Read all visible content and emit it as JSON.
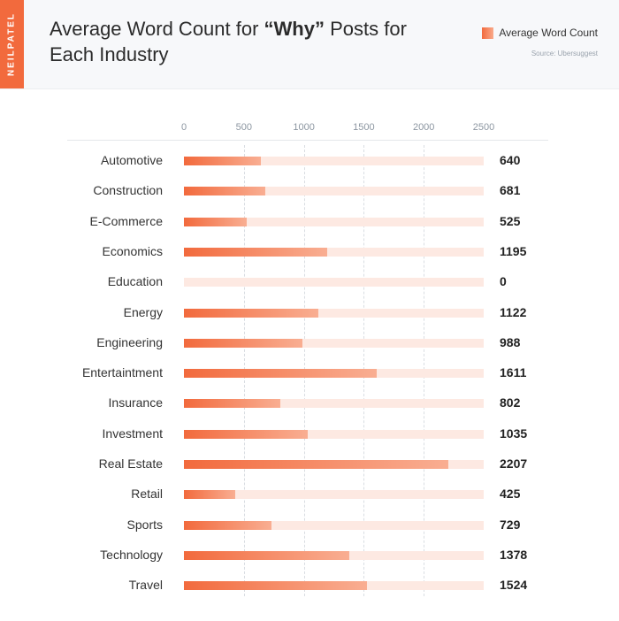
{
  "brand": {
    "name": "NEILPATEL"
  },
  "header": {
    "title_before": "Average Word Count for ",
    "title_emph": "“Why”",
    "title_after": " Posts for Each Industry",
    "source": "Source: Ubersuggest",
    "accent_color": "#f26a3d"
  },
  "chart_data": {
    "type": "bar",
    "orientation": "horizontal",
    "title": "Average Word Count for “Why” Posts for Each Industry",
    "legend": "Average Word Count",
    "legend_position": "top-right",
    "xlim": [
      0,
      2500
    ],
    "ticks": [
      "0",
      "500",
      "1000",
      "1500",
      "2000",
      "2500"
    ],
    "tick_values": [
      0,
      500,
      1000,
      1500,
      2000,
      2500
    ],
    "grid": true,
    "categories": [
      "Automotive",
      "Construction",
      "E-Commerce",
      "Economics",
      "Education",
      "Energy",
      "Engineering",
      "Entertaintment",
      "Insurance",
      "Investment",
      "Real Estate",
      "Retail",
      "Sports",
      "Technology",
      "Travel"
    ],
    "values": [
      640,
      681,
      525,
      1195,
      0,
      1122,
      988,
      1611,
      802,
      1035,
      2207,
      425,
      729,
      1378,
      1524
    ],
    "value_labels": [
      "640",
      "681",
      "525",
      "1195",
      "0",
      "1122",
      "988",
      "1611",
      "802",
      "1035",
      "2207",
      "425",
      "729",
      "1378",
      "1524"
    ]
  }
}
